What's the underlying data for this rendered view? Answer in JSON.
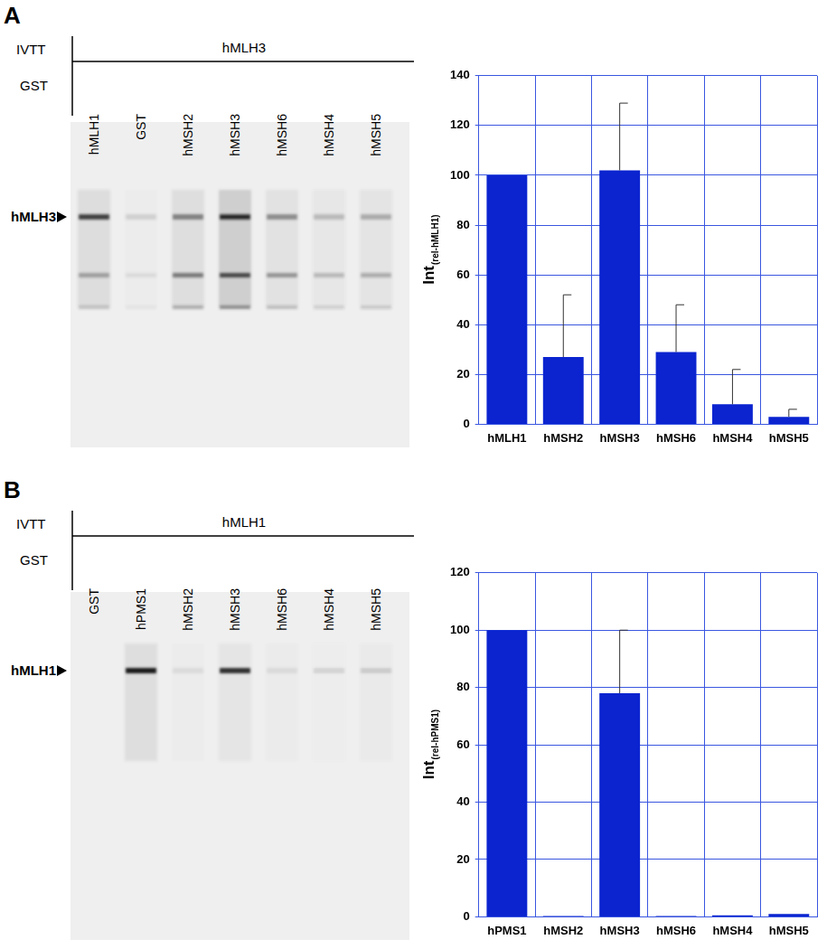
{
  "panels": [
    {
      "label": "A",
      "gel": {
        "ivtt_header": "IVTT",
        "ivtt_protein": "hMLH3",
        "gst_header": "GST",
        "lanes": [
          "hMLH1",
          "GST",
          "hMSH2",
          "hMSH3",
          "hMSH6",
          "hMSH4",
          "hMSH5"
        ],
        "band_marker": "hMLH3"
      }
    },
    {
      "label": "B",
      "gel": {
        "ivtt_header": "IVTT",
        "ivtt_protein": "hMLH1",
        "gst_header": "GST",
        "lanes": [
          "GST",
          "hPMS1",
          "hMSH2",
          "hMSH3",
          "hMSH6",
          "hMSH4",
          "hMSH5"
        ],
        "band_marker": "hMLH1"
      }
    }
  ],
  "chart_data": [
    {
      "type": "bar",
      "y_label": {
        "text": "Int",
        "subscript": "(rel-hMLH1)"
      },
      "categories": [
        "hMLH1",
        "hMSH2",
        "hMSH3",
        "hMSH6",
        "hMSH4",
        "hMSH5"
      ],
      "values": [
        100,
        27,
        102,
        29,
        8,
        3
      ],
      "errors": [
        null,
        25,
        27,
        19,
        14,
        3
      ],
      "color": "#0b24d0",
      "ylim": [
        0,
        140
      ],
      "yticks": [
        0,
        20,
        40,
        60,
        80,
        100,
        120,
        140
      ],
      "grid": true
    },
    {
      "type": "bar",
      "y_label": {
        "text": "Int",
        "subscript": "(rel-hPMS1)"
      },
      "categories": [
        "hPMS1",
        "hMSH2",
        "hMSH3",
        "hMSH6",
        "hMSH4",
        "hMSH5"
      ],
      "values": [
        100,
        0.3,
        78,
        0.3,
        0.5,
        1
      ],
      "errors": [
        null,
        null,
        22,
        null,
        null,
        null
      ],
      "color": "#0b24d0",
      "ylim": [
        0,
        120
      ],
      "yticks": [
        0,
        20,
        40,
        60,
        80,
        100,
        120
      ],
      "grid": true
    }
  ]
}
